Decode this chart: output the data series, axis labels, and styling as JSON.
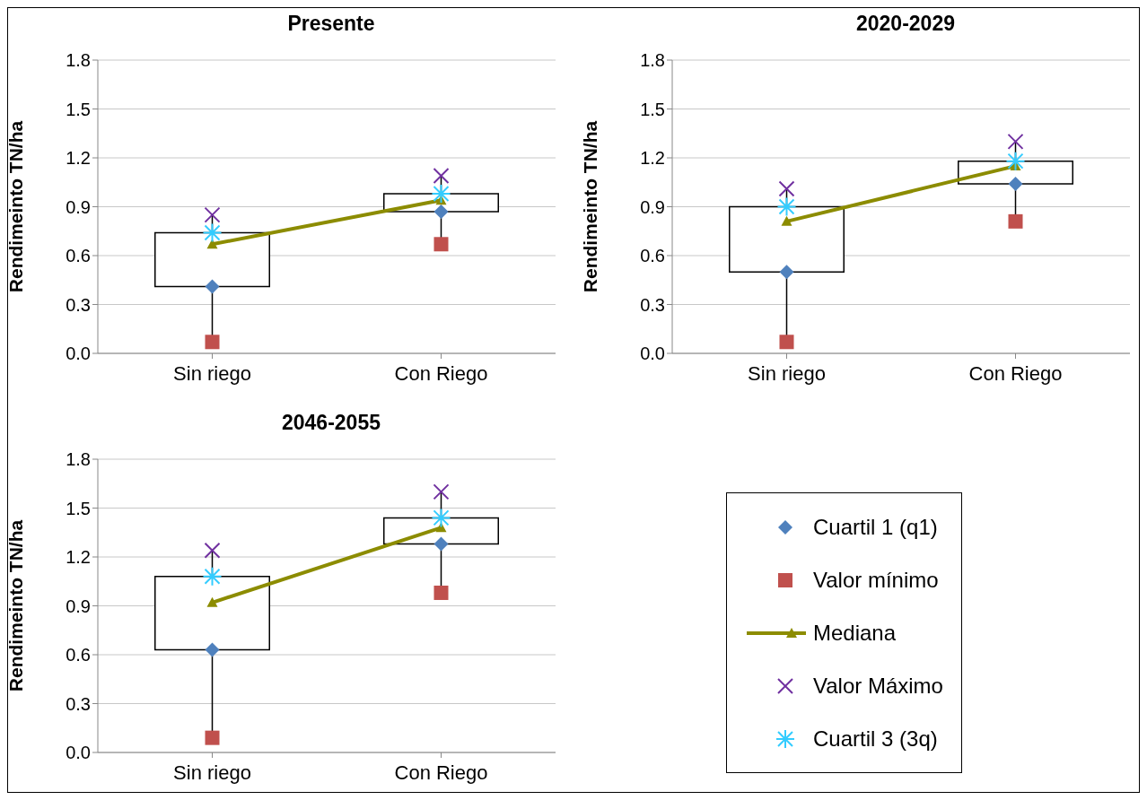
{
  "chart_data": [
    {
      "type": "box",
      "title": "Presente",
      "ylabel": "Rendimeinto TN/ha",
      "categories": [
        "Sin riego",
        "Con Riego"
      ],
      "boxes": [
        {
          "low": 0.07,
          "q1": 0.41,
          "q3": 0.74,
          "high": 0.85
        },
        {
          "low": 0.67,
          "q1": 0.87,
          "q3": 0.98,
          "high": 1.09
        }
      ],
      "series": [
        {
          "type": "scatter",
          "marker": "diamond",
          "color": "#4f81bd",
          "values": [
            0.41,
            0.87
          ]
        },
        {
          "type": "scatter",
          "marker": "square",
          "color": "#c0504d",
          "values": [
            0.07,
            0.67
          ]
        },
        {
          "type": "line",
          "marker": "triangle",
          "color": "#8c8c00",
          "values": [
            0.67,
            0.94
          ]
        },
        {
          "type": "scatter",
          "marker": "cross",
          "color": "#7030a0",
          "values": [
            0.85,
            1.09
          ]
        },
        {
          "type": "scatter",
          "color": "#33ccff",
          "values": [
            0.74,
            0.98
          ]
        }
      ],
      "ylim": [
        0,
        1.8
      ],
      "yticks": [
        {
          "value": 0,
          "label": "0.0"
        },
        {
          "value": 0.3,
          "label": "0.3"
        },
        {
          "value": 0.6,
          "label": "0.6"
        },
        {
          "value": 0.9,
          "label": "0.9"
        },
        {
          "value": 1.2,
          "label": "1.2"
        },
        {
          "value": 1.5,
          "label": "1.5"
        },
        {
          "value": 1.8,
          "label": "1.8"
        }
      ],
      "grid": "y",
      "legend": false
    },
    {
      "type": "box",
      "title": "2020-2029",
      "ylabel": "Rendimeinto TN/ha",
      "categories": [
        "Sin riego",
        "Con Riego"
      ],
      "boxes": [
        {
          "low": 0.07,
          "q1": 0.5,
          "q3": 0.9,
          "high": 1.01
        },
        {
          "low": 0.81,
          "q1": 1.04,
          "q3": 1.18,
          "high": 1.3
        }
      ],
      "series": [
        {
          "type": "scatter",
          "marker": "diamond",
          "color": "#4f81bd",
          "values": [
            0.5,
            1.04
          ]
        },
        {
          "type": "scatter",
          "marker": "square",
          "color": "#c0504d",
          "values": [
            0.07,
            0.81
          ]
        },
        {
          "type": "line",
          "marker": "triangle",
          "color": "#8c8c00",
          "values": [
            0.81,
            1.15
          ]
        },
        {
          "type": "scatter",
          "marker": "cross",
          "color": "#7030a0",
          "values": [
            1.01,
            1.3
          ]
        },
        {
          "type": "scatter",
          "color": "#33ccff",
          "values": [
            0.9,
            1.18
          ]
        }
      ],
      "ylim": [
        0,
        1.8
      ],
      "yticks": [
        {
          "value": 0,
          "label": "0.0"
        },
        {
          "value": 0.3,
          "label": "0.3"
        },
        {
          "value": 0.6,
          "label": "0.6"
        },
        {
          "value": 0.9,
          "label": "0.9"
        },
        {
          "value": 1.2,
          "label": "1.2"
        },
        {
          "value": 1.5,
          "label": "1.5"
        },
        {
          "value": 1.8,
          "label": "1.8"
        }
      ],
      "grid": "y",
      "legend": false
    },
    {
      "type": "box",
      "title": "2046-2055",
      "ylabel": "Rendimeinto TN/ha",
      "categories": [
        "Sin riego",
        "Con Riego"
      ],
      "boxes": [
        {
          "low": 0.09,
          "q1": 0.63,
          "q3": 1.08,
          "high": 1.24
        },
        {
          "low": 0.98,
          "q1": 1.28,
          "q3": 1.44,
          "high": 1.6
        }
      ],
      "series": [
        {
          "name": "Cuartil 1 (q1)",
          "type": "scatter",
          "marker": "diamond",
          "color": "#4f81bd",
          "values": [
            0.63,
            1.28
          ]
        },
        {
          "name": "Valor mínimo",
          "type": "scatter",
          "marker": "square",
          "color": "#c0504d",
          "values": [
            0.09,
            0.98
          ]
        },
        {
          "name": "Mediana",
          "type": "line",
          "marker": "triangle",
          "color": "#8c8c00",
          "values": [
            0.92,
            1.38
          ]
        },
        {
          "name": "Valor Máximo",
          "type": "scatter",
          "marker": "cross",
          "color": "#7030a0",
          "values": [
            1.24,
            1.6
          ]
        },
        {
          "name": "Cuartil 3 (3q)",
          "type": "scatter",
          "color": "#33ccff",
          "values": [
            1.08,
            1.44
          ]
        }
      ],
      "ylim": [
        0,
        1.8
      ],
      "yticks": [
        {
          "value": 0,
          "label": "0.0"
        },
        {
          "value": 0.3,
          "label": "0.3"
        },
        {
          "value": 0.6,
          "label": "0.6"
        },
        {
          "value": 0.9,
          "label": "0.9"
        },
        {
          "value": 1.2,
          "label": "1.2"
        },
        {
          "value": 1.5,
          "label": "1.5"
        },
        {
          "value": 1.8,
          "label": "1.8"
        }
      ],
      "grid": "y",
      "legend": "right"
    }
  ]
}
